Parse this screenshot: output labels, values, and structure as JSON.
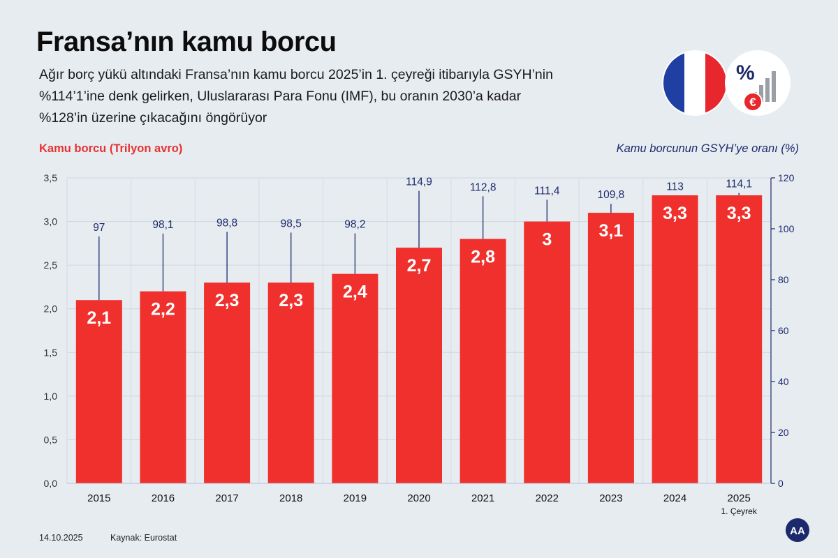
{
  "header": {
    "title": "Fransa’nın kamu borcu",
    "subtitle_lines": [
      "Ağır borç yükü altındaki Fransa’nın kamu borcu 2025’in 1. çeyreği itibarıyla GSYH’nin",
      "%114’1’ine denk gelirken, Uluslararası Para Fonu (IMF), bu oranın 2030’a kadar",
      "%128’in üzerine çıkacağını öngörüyor"
    ]
  },
  "badges": {
    "flag_colors": [
      "#1f3fa3",
      "#ffffff",
      "#e8262d"
    ],
    "percent_symbol": "%",
    "euro_symbol": "€"
  },
  "chart_data": {
    "type": "bar",
    "categories": [
      "2015",
      "2016",
      "2017",
      "2018",
      "2019",
      "2020",
      "2021",
      "2022",
      "2023",
      "2024",
      "2025"
    ],
    "category_sublabels": [
      "",
      "",
      "",
      "",
      "",
      "",
      "",
      "",
      "",
      "",
      "1. Çeyrek"
    ],
    "series": [
      {
        "name": "Kamu borcu (Trilyon avro)",
        "axis": "left",
        "values": [
          2.1,
          2.2,
          2.3,
          2.3,
          2.4,
          2.7,
          2.8,
          3.0,
          3.1,
          3.3,
          3.3
        ],
        "labels": [
          "2,1",
          "2,2",
          "2,3",
          "2,3",
          "2,4",
          "2,7",
          "2,8",
          "3",
          "3,1",
          "3,3",
          "3,3"
        ],
        "color": "#f0302d"
      },
      {
        "name": "Kamu borcunun GSYH’ye oranı (%)",
        "axis": "right",
        "values": [
          97,
          98.1,
          98.8,
          98.5,
          98.2,
          114.9,
          112.8,
          111.4,
          109.8,
          113,
          114.1
        ],
        "labels": [
          "97",
          "98,1",
          "98,8",
          "98,5",
          "98,2",
          "114,9",
          "112,8",
          "111,4",
          "109,8",
          "113",
          "114,1"
        ],
        "color": "#1c2a6b"
      }
    ],
    "ylabel": "Kamu borcu (Trilyon avro)",
    "ylabel_right": "Kamu borcunun GSYH’ye oranı (%)",
    "ylim": [
      0,
      3.5
    ],
    "ylim_right": [
      0,
      120
    ],
    "yticks": [
      "0,0",
      "0,5",
      "1,0",
      "1,5",
      "2,0",
      "2,5",
      "3,0",
      "3,5"
    ],
    "yticks_right": [
      "0",
      "20",
      "40",
      "60",
      "80",
      "100",
      "120"
    ],
    "grid": true
  },
  "footer": {
    "date": "14.10.2025",
    "source": "Kaynak: Eurostat",
    "logo": "AA"
  }
}
